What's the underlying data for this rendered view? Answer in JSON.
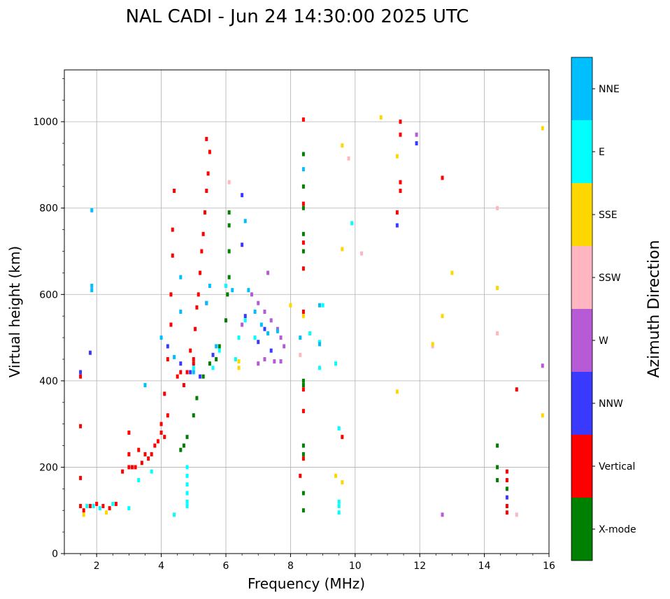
{
  "chart_data": {
    "type": "scatter",
    "title": "NAL CADI - Jun 24 14:30:00 2025 UTC",
    "xlabel": "Frequency (MHz)",
    "ylabel": "Virtual height (km)",
    "xlim": [
      1,
      16
    ],
    "ylim": [
      0,
      1120
    ],
    "xticks": [
      2,
      4,
      6,
      8,
      10,
      12,
      14,
      16
    ],
    "yticks": [
      0,
      200,
      400,
      600,
      800,
      1000
    ],
    "grid": true,
    "colorbar": {
      "label": "Azimuth Direction",
      "categories": [
        {
          "name": "X-mode",
          "color": "#008000"
        },
        {
          "name": "Vertical",
          "color": "#ff0000"
        },
        {
          "name": "NNW",
          "color": "#3a3aff"
        },
        {
          "name": "W",
          "color": "#b65ad6"
        },
        {
          "name": "SSW",
          "color": "#ffb6c1"
        },
        {
          "name": "SSE",
          "color": "#ffd700"
        },
        {
          "name": "E",
          "color": "#00ffff"
        },
        {
          "name": "NNE",
          "color": "#00bfff"
        }
      ]
    },
    "series": [
      {
        "name": "Vertical",
        "color": "#ff0000",
        "points": [
          [
            1.5,
            410
          ],
          [
            1.5,
            295
          ],
          [
            1.5,
            175
          ],
          [
            1.5,
            110
          ],
          [
            1.6,
            100
          ],
          [
            1.8,
            110
          ],
          [
            2.0,
            115
          ],
          [
            2.2,
            110
          ],
          [
            2.4,
            105
          ],
          [
            2.6,
            115
          ],
          [
            2.8,
            190
          ],
          [
            3.0,
            200
          ],
          [
            3.0,
            230
          ],
          [
            3.0,
            280
          ],
          [
            3.1,
            200
          ],
          [
            3.2,
            200
          ],
          [
            3.3,
            240
          ],
          [
            3.4,
            210
          ],
          [
            3.5,
            230
          ],
          [
            3.6,
            220
          ],
          [
            3.7,
            230
          ],
          [
            3.8,
            250
          ],
          [
            3.9,
            260
          ],
          [
            4.0,
            280
          ],
          [
            4.0,
            300
          ],
          [
            4.1,
            370
          ],
          [
            4.1,
            270
          ],
          [
            4.2,
            320
          ],
          [
            4.2,
            450
          ],
          [
            4.3,
            530
          ],
          [
            4.3,
            600
          ],
          [
            4.35,
            690
          ],
          [
            4.35,
            750
          ],
          [
            4.4,
            840
          ],
          [
            4.5,
            410
          ],
          [
            4.6,
            420
          ],
          [
            4.7,
            390
          ],
          [
            4.8,
            420
          ],
          [
            4.9,
            470
          ],
          [
            5.0,
            450
          ],
          [
            5.05,
            520
          ],
          [
            5.1,
            570
          ],
          [
            5.15,
            600
          ],
          [
            5.2,
            650
          ],
          [
            5.25,
            700
          ],
          [
            5.3,
            740
          ],
          [
            5.35,
            790
          ],
          [
            5.4,
            840
          ],
          [
            5.45,
            880
          ],
          [
            5.5,
            930
          ],
          [
            5.4,
            960
          ],
          [
            5.0,
            440
          ],
          [
            8.4,
            1005
          ],
          [
            8.4,
            810
          ],
          [
            8.4,
            720
          ],
          [
            8.4,
            660
          ],
          [
            8.4,
            560
          ],
          [
            8.4,
            380
          ],
          [
            8.4,
            330
          ],
          [
            8.4,
            220
          ],
          [
            8.3,
            180
          ],
          [
            9.6,
            270
          ],
          [
            11.4,
            1000
          ],
          [
            11.4,
            970
          ],
          [
            11.4,
            860
          ],
          [
            11.4,
            840
          ],
          [
            11.3,
            790
          ],
          [
            12.7,
            870
          ],
          [
            15.0,
            380
          ],
          [
            14.7,
            190
          ],
          [
            14.7,
            170
          ],
          [
            14.7,
            110
          ],
          [
            14.7,
            95
          ]
        ]
      },
      {
        "name": "X-mode",
        "color": "#008000",
        "points": [
          [
            4.6,
            240
          ],
          [
            4.7,
            250
          ],
          [
            4.8,
            270
          ],
          [
            5.0,
            320
          ],
          [
            5.1,
            360
          ],
          [
            5.3,
            410
          ],
          [
            5.5,
            440
          ],
          [
            5.7,
            450
          ],
          [
            5.8,
            480
          ],
          [
            6.0,
            540
          ],
          [
            6.05,
            600
          ],
          [
            6.1,
            640
          ],
          [
            6.1,
            700
          ],
          [
            6.1,
            760
          ],
          [
            6.1,
            790
          ],
          [
            8.4,
            925
          ],
          [
            8.4,
            850
          ],
          [
            8.4,
            800
          ],
          [
            8.4,
            740
          ],
          [
            8.4,
            700
          ],
          [
            8.4,
            400
          ],
          [
            8.4,
            390
          ],
          [
            8.4,
            250
          ],
          [
            8.4,
            230
          ],
          [
            8.4,
            140
          ],
          [
            8.4,
            100
          ],
          [
            14.4,
            250
          ],
          [
            14.4,
            200
          ],
          [
            14.4,
            170
          ],
          [
            14.7,
            150
          ]
        ]
      },
      {
        "name": "NNW",
        "color": "#3a3aff",
        "points": [
          [
            1.5,
            420
          ],
          [
            1.8,
            465
          ],
          [
            4.2,
            480
          ],
          [
            4.6,
            440
          ],
          [
            4.9,
            420
          ],
          [
            5.2,
            410
          ],
          [
            5.4,
            580
          ],
          [
            5.6,
            460
          ],
          [
            6.5,
            830
          ],
          [
            6.5,
            715
          ],
          [
            6.6,
            550
          ],
          [
            7.0,
            490
          ],
          [
            7.2,
            520
          ],
          [
            7.4,
            470
          ],
          [
            11.3,
            760
          ],
          [
            11.9,
            950
          ],
          [
            14.7,
            130
          ]
        ]
      },
      {
        "name": "W",
        "color": "#b65ad6",
        "points": [
          [
            6.5,
            530
          ],
          [
            6.8,
            600
          ],
          [
            7.0,
            580
          ],
          [
            7.2,
            560
          ],
          [
            7.4,
            540
          ],
          [
            7.6,
            520
          ],
          [
            7.7,
            500
          ],
          [
            7.8,
            480
          ],
          [
            7.3,
            650
          ],
          [
            7.0,
            440
          ],
          [
            7.2,
            450
          ],
          [
            7.5,
            445
          ],
          [
            7.7,
            445
          ],
          [
            12.7,
            90
          ],
          [
            15.8,
            435
          ],
          [
            11.9,
            970
          ]
        ]
      },
      {
        "name": "SSW",
        "color": "#ffb6c1",
        "points": [
          [
            10.2,
            695
          ],
          [
            9.8,
            915
          ],
          [
            14.4,
            800
          ],
          [
            14.4,
            510
          ],
          [
            12.4,
            480
          ],
          [
            15.0,
            90
          ],
          [
            8.3,
            460
          ],
          [
            6.1,
            860
          ]
        ]
      },
      {
        "name": "SSE",
        "color": "#ffd700",
        "points": [
          [
            1.6,
            90
          ],
          [
            2.3,
            95
          ],
          [
            10.8,
            1010
          ],
          [
            9.6,
            945
          ],
          [
            9.6,
            705
          ],
          [
            9.6,
            165
          ],
          [
            9.4,
            180
          ],
          [
            11.3,
            920
          ],
          [
            11.3,
            375
          ],
          [
            12.7,
            550
          ],
          [
            13.0,
            650
          ],
          [
            12.4,
            485
          ],
          [
            14.4,
            615
          ],
          [
            15.8,
            985
          ],
          [
            15.8,
            320
          ],
          [
            6.4,
            430
          ],
          [
            6.4,
            445
          ],
          [
            8.0,
            575
          ],
          [
            8.4,
            550
          ]
        ]
      },
      {
        "name": "E",
        "color": "#00ffff",
        "points": [
          [
            1.7,
            110
          ],
          [
            1.9,
            110
          ],
          [
            2.1,
            105
          ],
          [
            2.5,
            115
          ],
          [
            3.0,
            105
          ],
          [
            3.3,
            170
          ],
          [
            3.7,
            190
          ],
          [
            4.4,
            90
          ],
          [
            4.8,
            200
          ],
          [
            4.8,
            180
          ],
          [
            4.8,
            160
          ],
          [
            4.8,
            140
          ],
          [
            4.8,
            120
          ],
          [
            4.8,
            110
          ],
          [
            5.0,
            430
          ],
          [
            5.6,
            430
          ],
          [
            5.8,
            470
          ],
          [
            6.0,
            620
          ],
          [
            6.3,
            450
          ],
          [
            6.4,
            500
          ],
          [
            6.6,
            540
          ],
          [
            6.9,
            500
          ],
          [
            8.6,
            510
          ],
          [
            8.9,
            430
          ],
          [
            8.9,
            490
          ],
          [
            9.0,
            575
          ],
          [
            9.4,
            440
          ],
          [
            9.5,
            290
          ],
          [
            9.5,
            120
          ],
          [
            9.5,
            110
          ],
          [
            9.5,
            95
          ],
          [
            9.9,
            765
          ]
        ]
      },
      {
        "name": "NNE",
        "color": "#00bfff",
        "points": [
          [
            1.85,
            795
          ],
          [
            1.85,
            620
          ],
          [
            1.85,
            610
          ],
          [
            4.0,
            500
          ],
          [
            4.4,
            455
          ],
          [
            4.6,
            640
          ],
          [
            4.6,
            560
          ],
          [
            5.0,
            420
          ],
          [
            5.4,
            580
          ],
          [
            5.5,
            620
          ],
          [
            5.7,
            480
          ],
          [
            6.2,
            610
          ],
          [
            6.6,
            770
          ],
          [
            6.7,
            610
          ],
          [
            6.9,
            560
          ],
          [
            7.1,
            530
          ],
          [
            7.3,
            510
          ],
          [
            7.6,
            515
          ],
          [
            8.3,
            500
          ],
          [
            8.4,
            890
          ],
          [
            8.9,
            485
          ],
          [
            8.9,
            575
          ],
          [
            3.5,
            390
          ]
        ]
      }
    ]
  }
}
